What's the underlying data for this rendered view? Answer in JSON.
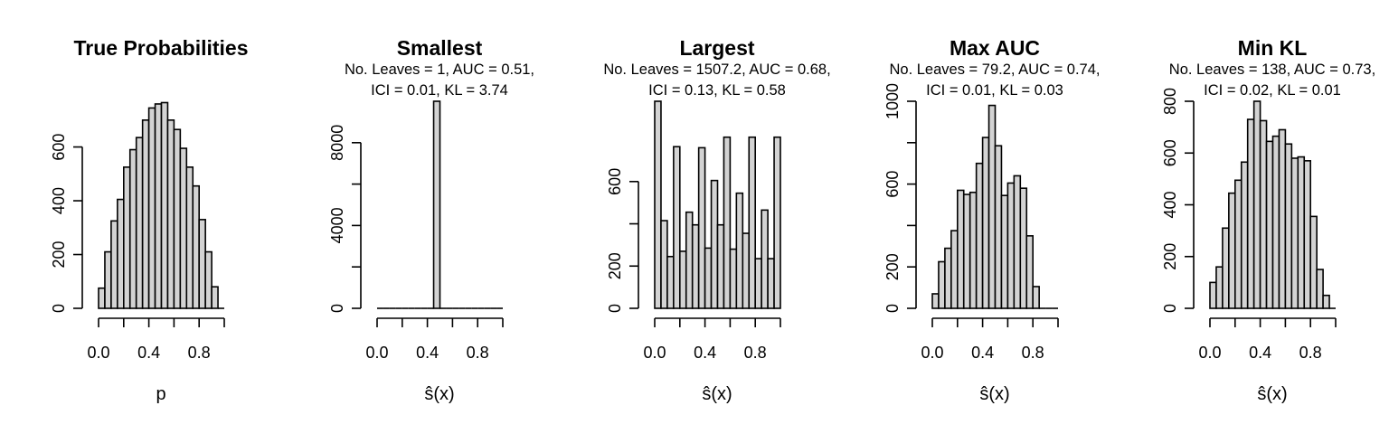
{
  "chart_data": [
    {
      "type": "bar",
      "title": "True Probabilities",
      "subtitle": [],
      "xlabel": "p",
      "xlim": [
        0,
        1
      ],
      "ylim": [
        0,
        770
      ],
      "xticks": [
        "0.0",
        "0.4",
        "0.8"
      ],
      "yticks": [
        "0",
        "200",
        "400",
        "600"
      ],
      "bin_width": 0.05,
      "values": [
        75,
        210,
        325,
        405,
        525,
        590,
        635,
        700,
        745,
        760,
        765,
        700,
        665,
        595,
        525,
        455,
        330,
        210,
        80,
        0
      ]
    },
    {
      "type": "bar",
      "title": "Smallest",
      "subtitle": [
        "No. Leaves = 1, AUC = 0.51,",
        "ICI = 0.01, KL = 3.74"
      ],
      "xlabel": "ŝ(x)",
      "xlim": [
        0,
        1
      ],
      "ylim": [
        0,
        10000
      ],
      "xticks": [
        "0.0",
        "0.4",
        "0.8"
      ],
      "yticks": [
        "0",
        "4000",
        "8000"
      ],
      "bin_width": 0.05,
      "values": [
        0,
        0,
        0,
        0,
        0,
        0,
        0,
        0,
        0,
        10000,
        0,
        0,
        0,
        0,
        0,
        0,
        0,
        0,
        0,
        0
      ]
    },
    {
      "type": "bar",
      "title": "Largest",
      "subtitle": [
        "No. Leaves = 1507.2, AUC = 0.68,",
        "ICI = 0.13, KL = 0.58"
      ],
      "xlabel": "ŝ(x)",
      "xlim": [
        0,
        1
      ],
      "ylim": [
        0,
        980
      ],
      "xticks": [
        "0.0",
        "0.4",
        "0.8"
      ],
      "yticks": [
        "0",
        "200",
        "600"
      ],
      "bin_width": 0.05,
      "values": [
        985,
        415,
        245,
        765,
        270,
        455,
        395,
        760,
        285,
        605,
        395,
        810,
        280,
        545,
        355,
        810,
        235,
        465,
        235,
        810
      ]
    },
    {
      "type": "bar",
      "title": "Max AUC",
      "subtitle": [
        "No. Leaves = 79.2, AUC = 0.74,",
        "ICI = 0.01, KL = 0.03"
      ],
      "xlabel": "ŝ(x)",
      "xlim": [
        0,
        1
      ],
      "ylim": [
        0,
        1000
      ],
      "xticks": [
        "0.0",
        "0.4",
        "0.8"
      ],
      "yticks": [
        "0",
        "200",
        "600",
        "1000"
      ],
      "bin_width": 0.05,
      "values": [
        70,
        225,
        290,
        375,
        570,
        550,
        560,
        700,
        825,
        980,
        785,
        545,
        605,
        640,
        580,
        350,
        105,
        0,
        0,
        0
      ]
    },
    {
      "type": "bar",
      "title": "Min KL",
      "subtitle": [
        "No. Leaves = 138, AUC = 0.73,",
        "ICI = 0.02, KL = 0.01"
      ],
      "xlabel": "ŝ(x)",
      "xlim": [
        0,
        1
      ],
      "ylim": [
        0,
        800
      ],
      "xticks": [
        "0.0",
        "0.4",
        "0.8"
      ],
      "yticks": [
        "0",
        "200",
        "400",
        "600",
        "800"
      ],
      "bin_width": 0.05,
      "values": [
        100,
        160,
        310,
        445,
        495,
        565,
        730,
        800,
        725,
        645,
        665,
        690,
        635,
        580,
        585,
        570,
        355,
        150,
        50,
        0
      ]
    }
  ]
}
